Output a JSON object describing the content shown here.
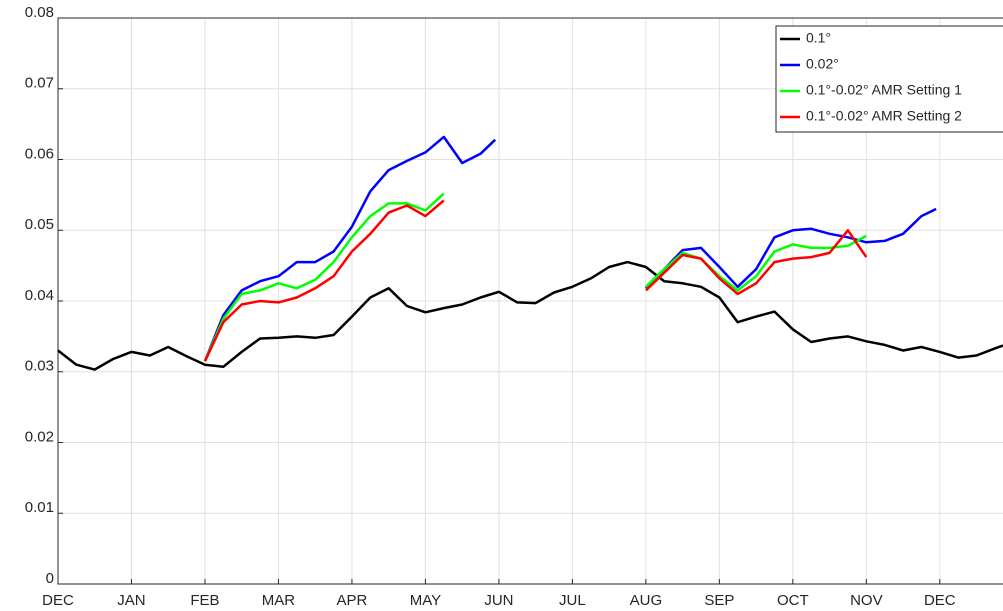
{
  "chart_data": {
    "type": "line",
    "xlim": [
      0,
      12.86
    ],
    "ylim": [
      0,
      0.08
    ],
    "xticks": [
      {
        "value": 0,
        "label": "DEC"
      },
      {
        "value": 1,
        "label": "JAN"
      },
      {
        "value": 2,
        "label": "FEB"
      },
      {
        "value": 3,
        "label": "MAR"
      },
      {
        "value": 4,
        "label": "APR"
      },
      {
        "value": 5,
        "label": "MAY"
      },
      {
        "value": 6,
        "label": "JUN"
      },
      {
        "value": 7,
        "label": "JUL"
      },
      {
        "value": 8,
        "label": "AUG"
      },
      {
        "value": 9,
        "label": "SEP"
      },
      {
        "value": 10,
        "label": "OCT"
      },
      {
        "value": 11,
        "label": "NOV"
      },
      {
        "value": 12,
        "label": "DEC"
      }
    ],
    "yticks": [
      0,
      0.01,
      0.02,
      0.03,
      0.04,
      0.05,
      0.06,
      0.07,
      0.08
    ],
    "grid": true,
    "legend": "upper right",
    "series": [
      {
        "name": "0.1°",
        "color": "#000000",
        "x": [
          0,
          0.25,
          0.5,
          0.75,
          1,
          1.25,
          1.5,
          1.75,
          2,
          2.25,
          2.5,
          2.75,
          3,
          3.25,
          3.5,
          3.75,
          4,
          4.25,
          4.5,
          4.75,
          5,
          5.25,
          5.5,
          5.75,
          6,
          6.25,
          6.5,
          6.75,
          7,
          7.25,
          7.5,
          7.75,
          8,
          8.25,
          8.5,
          8.75,
          9,
          9.25,
          9.5,
          9.75,
          10,
          10.25,
          10.5,
          10.75,
          11,
          11.25,
          11.5,
          11.75,
          12,
          12.25,
          12.5,
          12.75,
          12.86
        ],
        "values": [
          0.033,
          0.031,
          0.0303,
          0.0318,
          0.0328,
          0.0323,
          0.0335,
          0.0322,
          0.031,
          0.0307,
          0.0328,
          0.0347,
          0.0348,
          0.035,
          0.0348,
          0.0352,
          0.0378,
          0.0405,
          0.0418,
          0.0393,
          0.0384,
          0.039,
          0.0395,
          0.0405,
          0.0413,
          0.0398,
          0.0397,
          0.0412,
          0.042,
          0.0432,
          0.0448,
          0.0455,
          0.0448,
          0.0428,
          0.0425,
          0.042,
          0.0405,
          0.037,
          0.0378,
          0.0385,
          0.036,
          0.0342,
          0.0347,
          0.035,
          0.0343,
          0.0338,
          0.033,
          0.0335,
          0.0328,
          0.032,
          0.0323,
          0.0333,
          0.0337
        ]
      },
      {
        "name": "0.02°",
        "color": "#0000ff",
        "x": [
          2,
          2.25,
          2.5,
          2.75,
          3,
          3.25,
          3.5,
          3.75,
          4,
          4.25,
          4.5,
          4.75,
          5,
          5.25,
          5.5,
          5.75,
          5.95,
          7,
          8,
          8.25,
          8.5,
          8.75,
          9,
          9.25,
          9.5,
          9.75,
          10,
          10.25,
          10.5,
          10.75,
          11,
          11.25,
          11.5,
          11.75,
          11.95
        ],
        "values": [
          0.0315,
          0.038,
          0.0415,
          0.0428,
          0.0435,
          0.0455,
          0.0455,
          0.047,
          0.0505,
          0.0555,
          0.0585,
          0.0598,
          0.061,
          0.0632,
          0.0595,
          0.0608,
          0.0628,
          null,
          0.0418,
          0.0445,
          0.0472,
          0.0475,
          0.0448,
          0.042,
          0.0445,
          0.049,
          0.05,
          0.0502,
          0.0495,
          0.049,
          0.0483,
          0.0485,
          0.0495,
          0.052,
          0.053
        ]
      },
      {
        "name": "0.1°-0.02° AMR Setting 1",
        "color": "#00ff00",
        "x": [
          2,
          2.25,
          2.5,
          2.75,
          3,
          3.25,
          3.5,
          3.75,
          4,
          4.25,
          4.5,
          4.75,
          5,
          5.25,
          7,
          8,
          8.25,
          8.5,
          8.75,
          9,
          9.25,
          9.5,
          9.75,
          10,
          10.25,
          10.5,
          10.75,
          11
        ],
        "values": [
          0.0315,
          0.0375,
          0.041,
          0.0415,
          0.0425,
          0.0418,
          0.043,
          0.0455,
          0.049,
          0.052,
          0.0538,
          0.0538,
          0.0528,
          0.0552,
          null,
          0.042,
          0.0445,
          0.0468,
          0.046,
          0.0435,
          0.0415,
          0.0435,
          0.047,
          0.048,
          0.0475,
          0.0475,
          0.0478,
          0.0492
        ]
      },
      {
        "name": "0.1°-0.02° AMR Setting 2",
        "color": "#ff0000",
        "x": [
          2,
          2.25,
          2.5,
          2.75,
          3,
          3.25,
          3.5,
          3.75,
          4,
          4.25,
          4.5,
          4.75,
          5,
          5.25,
          7,
          8,
          8.25,
          8.5,
          8.75,
          9,
          9.25,
          9.5,
          9.75,
          10,
          10.25,
          10.5,
          10.75,
          11
        ],
        "values": [
          0.0315,
          0.037,
          0.0395,
          0.04,
          0.0398,
          0.0405,
          0.0418,
          0.0435,
          0.047,
          0.0495,
          0.0525,
          0.0535,
          0.052,
          0.0542,
          null,
          0.0415,
          0.044,
          0.0465,
          0.046,
          0.0432,
          0.041,
          0.0425,
          0.0455,
          0.046,
          0.0462,
          0.0468,
          0.05,
          0.0462
        ]
      }
    ]
  }
}
